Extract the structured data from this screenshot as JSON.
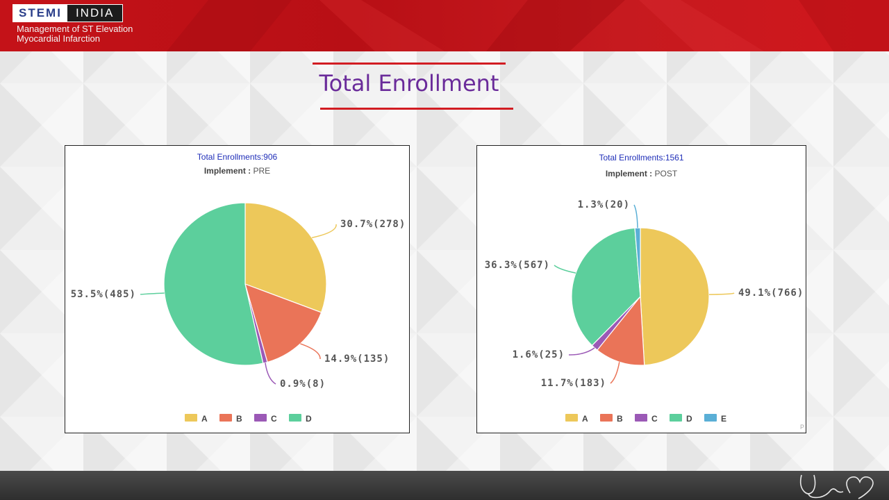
{
  "brand": {
    "logo_left": "STEMI",
    "logo_right": "INDIA",
    "tagline_line1": "Management of ST Elevation",
    "tagline_line2": "Myocardial Infarction"
  },
  "slide_title": "Total Enrollment",
  "colors": {
    "A": "#edc85a",
    "B": "#ea7458",
    "C": "#9b59b6",
    "D": "#5ccf9c",
    "E": "#5aafd6",
    "header_red": "#c41218",
    "title_purple": "#6a2b9a",
    "chart_title_blue": "#1f2eb8"
  },
  "chart_data": [
    {
      "type": "pie",
      "title": "Total Enrollments:906",
      "subtitle_key": "Implement :",
      "subtitle_value": "PRE",
      "categories": [
        "A",
        "B",
        "C",
        "D"
      ],
      "values": [
        278,
        135,
        8,
        485
      ],
      "labels": [
        "30.7%(278)",
        "14.9%(135)",
        "0.9%(8)",
        "53.5%(485)"
      ],
      "legend": [
        "A",
        "B",
        "C",
        "D"
      ],
      "legend_position": "bottom"
    },
    {
      "type": "pie",
      "title": "Total Enrollments:1561",
      "subtitle_key": "Implement :",
      "subtitle_value": "POST",
      "categories": [
        "A",
        "B",
        "C",
        "D",
        "E"
      ],
      "values": [
        766,
        183,
        25,
        567,
        20
      ],
      "labels": [
        "49.1%(766)",
        "11.7%(183)",
        "1.6%(25)",
        "36.3%(567)",
        "1.3%(20)"
      ],
      "legend": [
        "A",
        "B",
        "C",
        "D",
        "E"
      ],
      "legend_position": "bottom"
    }
  ],
  "corner_mark": "P"
}
